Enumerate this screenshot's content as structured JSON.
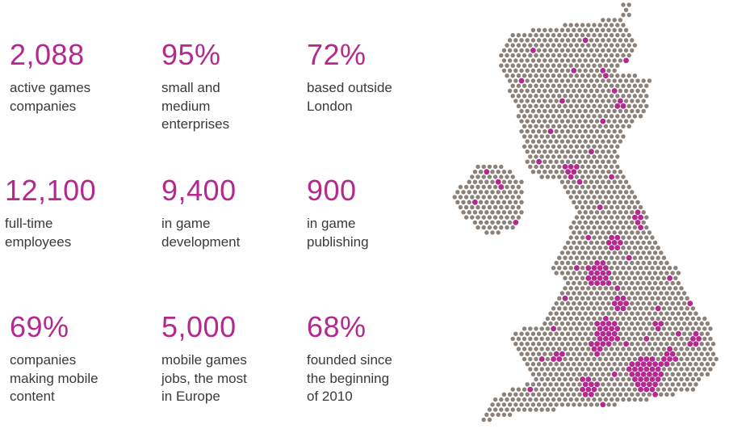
{
  "stats": [
    {
      "figure": "2,088",
      "lines": [
        "active games",
        "companies"
      ]
    },
    {
      "figure": "95%",
      "lines": [
        "small and",
        "medium",
        "enterprises"
      ]
    },
    {
      "figure": "72%",
      "lines": [
        "based outside",
        "London"
      ]
    },
    {
      "figure": "12,100",
      "lines": [
        "full-time",
        "employees"
      ]
    },
    {
      "figure": "9,400",
      "lines": [
        "in game",
        "development"
      ]
    },
    {
      "figure": "900",
      "lines": [
        "in game",
        "publishing"
      ]
    },
    {
      "figure": "69%",
      "lines": [
        "companies",
        "making mobile",
        "content"
      ]
    },
    {
      "figure": "5,000",
      "lines": [
        "mobile games",
        "jobs, the most",
        "in Europe"
      ]
    },
    {
      "figure": "68%",
      "lines": [
        "founded since",
        "the beginning",
        "of 2010"
      ]
    }
  ]
}
